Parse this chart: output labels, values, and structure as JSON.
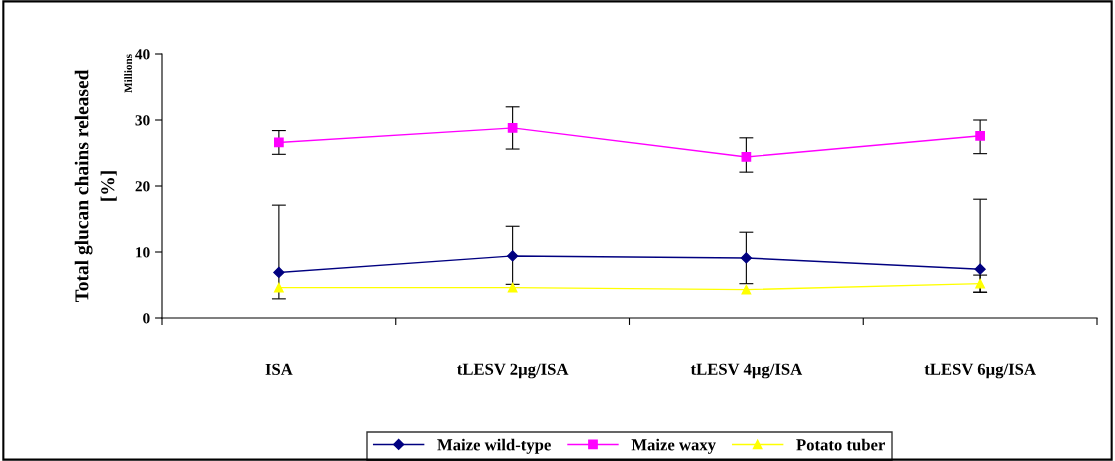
{
  "chart_data": {
    "type": "line",
    "ylabel": "Total glucan chains released\n[%]",
    "annotations": [
      "Millions"
    ],
    "categories": [
      "ISA",
      "tLESV 2µg/ISA",
      "tLESV 4µg/ISA",
      "tLESV 6µg/ISA"
    ],
    "ylim": [
      0,
      40
    ],
    "yticks": [
      0,
      10,
      20,
      30,
      40
    ],
    "grid": false,
    "legend": "bottom",
    "series": [
      {
        "name": "Maize wild-type",
        "color": "#000080",
        "marker": "diamond",
        "values": [
          6.9,
          9.4,
          9.1,
          7.4
        ],
        "errors": [
          [
            2.9,
            17.1
          ],
          [
            5.1,
            13.9
          ],
          [
            5.2,
            13.0
          ],
          [
            3.9,
            18.0
          ]
        ]
      },
      {
        "name": "Maize waxy",
        "color": "#ff00ff",
        "marker": "square",
        "values": [
          26.6,
          28.8,
          24.4,
          27.6
        ],
        "errors": [
          [
            24.8,
            28.4
          ],
          [
            25.6,
            32.0
          ],
          [
            22.1,
            27.3
          ],
          [
            24.9,
            30.0
          ]
        ]
      },
      {
        "name": "Potato tuber",
        "color": "#ffff00",
        "marker": "triangle",
        "values": [
          4.6,
          4.6,
          4.3,
          5.2
        ],
        "errors": [
          null,
          null,
          null,
          [
            3.9,
            6.5
          ]
        ]
      }
    ]
  }
}
